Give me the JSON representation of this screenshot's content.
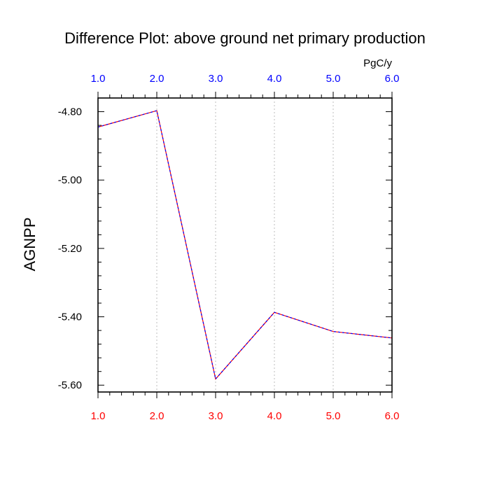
{
  "chart_data": {
    "type": "line",
    "title": "Difference Plot: above ground net primary production",
    "units": "PgC/y",
    "ylabel": "AGNPP",
    "xlim": [
      1.0,
      6.0
    ],
    "ylim": [
      -5.62,
      -4.76
    ],
    "x": [
      1,
      2,
      3,
      4,
      5,
      6
    ],
    "series": [
      {
        "values": [
          -4.845,
          -4.797,
          -5.582,
          -5.387,
          -5.443,
          -5.462
        ]
      }
    ],
    "x_ticks": [
      1,
      2,
      3,
      4,
      5,
      6
    ],
    "x_tick_labels": [
      "1.0",
      "2.0",
      "3.0",
      "4.0",
      "5.0",
      "6.0"
    ],
    "y_ticks": [
      -4.8,
      -5.0,
      -5.2,
      -5.4,
      -5.6
    ],
    "y_tick_labels": [
      "-4.80",
      "-5.00",
      "-5.20",
      "-5.40",
      "-5.60"
    ],
    "grid": "vertical dashed",
    "colors": {
      "line_a": "#ff0000",
      "line_b": "#0000ff",
      "grid": "#c8c8c8",
      "top_labels": "#0000ff",
      "bottom_labels": "#ff0000"
    }
  }
}
